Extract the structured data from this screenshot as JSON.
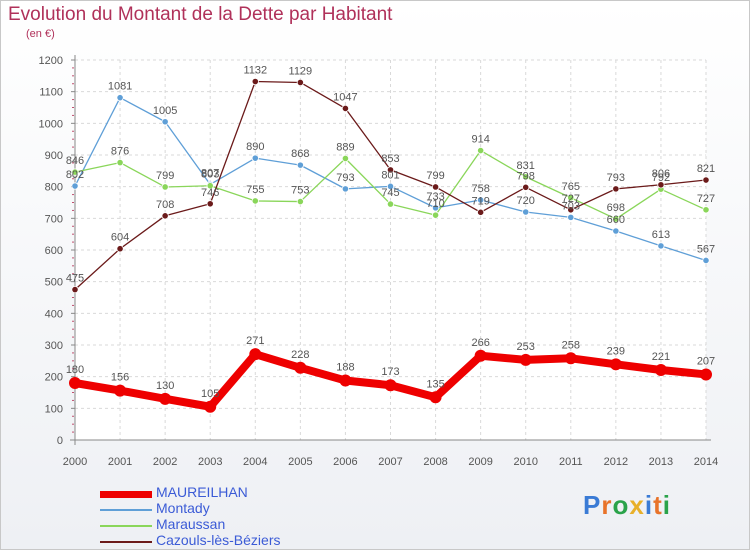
{
  "header": {
    "title": "Evolution du Montant de la Dette par Habitant",
    "subtitle": "(en €)"
  },
  "brand": {
    "text": "Proxiti",
    "colors": [
      "#3a7bd5",
      "#e8732a",
      "#2aa34a",
      "#e8b02a",
      "#3a7bd5",
      "#e8732a",
      "#2aa34a"
    ]
  },
  "colors": {
    "title": "#b0315a",
    "legend_text": "#3b5bd6",
    "axis": "#555555"
  },
  "chart_data": {
    "type": "line",
    "title": "Evolution du Montant de la Dette par Habitant",
    "subtitle": "(en €)",
    "xlabel": "",
    "ylabel": "",
    "x": [
      "2000",
      "2001",
      "2002",
      "2003",
      "2004",
      "2005",
      "2006",
      "2007",
      "2008",
      "2009",
      "2010",
      "2011",
      "2012",
      "2013",
      "2014"
    ],
    "ylim": [
      0,
      1200
    ],
    "yticks": [
      "0",
      "100",
      "200",
      "300",
      "400",
      "500",
      "600",
      "700",
      "800",
      "900",
      "1000",
      "1100",
      "1200"
    ],
    "grid": true,
    "legend": "bottom-left",
    "series": [
      {
        "name": "MAUREILHAN",
        "color": "#ee0000",
        "values": [
          180,
          156,
          130,
          105,
          271,
          228,
          188,
          173,
          135,
          266,
          253,
          258,
          239,
          221,
          207
        ],
        "labels": [
          "180",
          "156",
          "130",
          "105",
          "271",
          "228",
          "188",
          "173",
          "135",
          "266",
          "253",
          "258",
          "239",
          "221",
          "207"
        ]
      },
      {
        "name": "Montady",
        "color": "#5f9fd7",
        "values": [
          802,
          1081,
          1005,
          807,
          890,
          868,
          793,
          801,
          733,
          758,
          720,
          703,
          660,
          613,
          567
        ],
        "labels": [
          "802",
          "1081",
          "1005",
          "807",
          "890",
          "868",
          "793",
          "801",
          "733",
          "758",
          "720",
          "703",
          "660",
          "613",
          "567"
        ]
      },
      {
        "name": "Maraussan",
        "color": "#8ad65a",
        "values": [
          846,
          876,
          799,
          803,
          755,
          753,
          889,
          745,
          710,
          914,
          831,
          765,
          698,
          792,
          727
        ],
        "labels": [
          "846",
          "876",
          "799",
          "803",
          "755",
          "753",
          "889",
          "745",
          "710",
          "914",
          "831",
          "765",
          "698",
          "792",
          "727"
        ]
      },
      {
        "name": "Cazouls-lès-Béziers",
        "color": "#6b1a1a",
        "values": [
          475,
          604,
          708,
          746,
          1132,
          1129,
          1047,
          853,
          799,
          719,
          798,
          727,
          793,
          806,
          821
        ],
        "labels": [
          "475",
          "604",
          "708",
          "746",
          "1132",
          "1129",
          "1047",
          "853",
          "799",
          "719",
          "798",
          "727",
          "793",
          "806",
          "821"
        ]
      }
    ]
  }
}
